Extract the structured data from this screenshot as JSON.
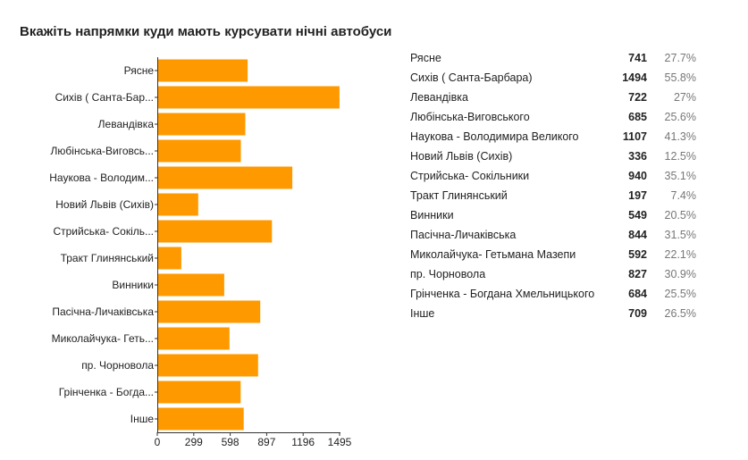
{
  "title": "Вкажіть напрямки куди мають курсувати нічні автобуси",
  "chart_data": {
    "type": "bar",
    "orientation": "horizontal",
    "categories": [
      "Рясне",
      "Сихів ( Санта-Бар...",
      "Левандівка",
      "Любінська-Виговсь...",
      "Наукова - Володим...",
      "Новий Львів (Сихів)",
      "Стрийська- Сокіль...",
      "Тракт Глинянський",
      "Винники",
      "Пасічна-Личаківська",
      "Миколайчука- Геть...",
      "пр. Чорновола",
      "Грінченка - Богда...",
      "Інше"
    ],
    "values": [
      741,
      1494,
      722,
      685,
      1107,
      336,
      940,
      197,
      549,
      844,
      592,
      827,
      684,
      709
    ],
    "xlim": [
      0,
      1495
    ],
    "xticks": [
      "0",
      "299",
      "598",
      "897",
      "1196",
      "1495"
    ],
    "xlabel": "",
    "ylabel": "",
    "bar_color": "#ff9900",
    "grid": false,
    "legend": "none"
  },
  "stats": [
    {
      "label": "Рясне",
      "count": "741",
      "percent": "27.7%"
    },
    {
      "label": "Сихів ( Санта-Барбара)",
      "count": "1494",
      "percent": "55.8%"
    },
    {
      "label": "Левандівка",
      "count": "722",
      "percent": "27%"
    },
    {
      "label": "Любінська-Виговського",
      "count": "685",
      "percent": "25.6%"
    },
    {
      "label": "Наукова - Володимира Великого",
      "count": "1107",
      "percent": "41.3%"
    },
    {
      "label": "Новий Львів (Сихів)",
      "count": "336",
      "percent": "12.5%"
    },
    {
      "label": "Стрийська- Сокільники",
      "count": "940",
      "percent": "35.1%"
    },
    {
      "label": "Тракт Глинянський",
      "count": "197",
      "percent": "7.4%"
    },
    {
      "label": "Винники",
      "count": "549",
      "percent": "20.5%"
    },
    {
      "label": "Пасічна-Личаківська",
      "count": "844",
      "percent": "31.5%"
    },
    {
      "label": "Миколайчука- Гетьмана Мазепи",
      "count": "592",
      "percent": "22.1%"
    },
    {
      "label": "пр. Чорновола",
      "count": "827",
      "percent": "30.9%"
    },
    {
      "label": "Грінченка - Богдана Хмельницького",
      "count": "684",
      "percent": "25.5%"
    },
    {
      "label": "Інше",
      "count": "709",
      "percent": "26.5%"
    }
  ]
}
